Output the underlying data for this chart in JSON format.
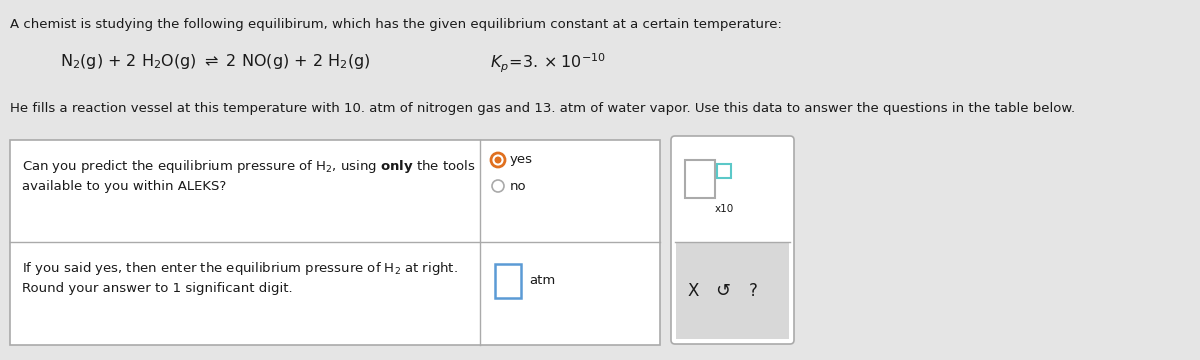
{
  "bg_color": "#e5e5e5",
  "white": "#ffffff",
  "light_gray": "#d8d8d8",
  "dark_gray": "#666666",
  "border_gray": "#aaaaaa",
  "text_color": "#1a1a1a",
  "blue_border": "#5b9bd5",
  "teal_fill": "#5bc8c8",
  "header_text": "A chemist is studying the following equilibirum, which has the given equilibrium constant at a certain temperature:",
  "body_text": "He fills a reaction vessel at this temperature with 10. atm of nitrogen gas and 13. atm of water vapor. Use this data to answer the questions in the table below.",
  "q1_left1": "Can you predict the equilibrium pressure of H",
  "q1_left1_sub": "2",
  "q1_left1_end": ", using ",
  "q1_bold": "only",
  "q1_left1_tail": " the tools",
  "q1_left2": "available to you within ALEKS?",
  "q1_yes": "yes",
  "q1_no": "no",
  "q2_left1": "If you said yes, then enter the equilibrium pressure of H",
  "q2_left1_sub": "2",
  "q2_left1_end": " at right.",
  "q2_left2": "Round your answer to 1 significant digit.",
  "q2_unit": "atm",
  "side_x": "X",
  "side_refresh": "↺",
  "side_q": "?",
  "side_x10": "x10"
}
